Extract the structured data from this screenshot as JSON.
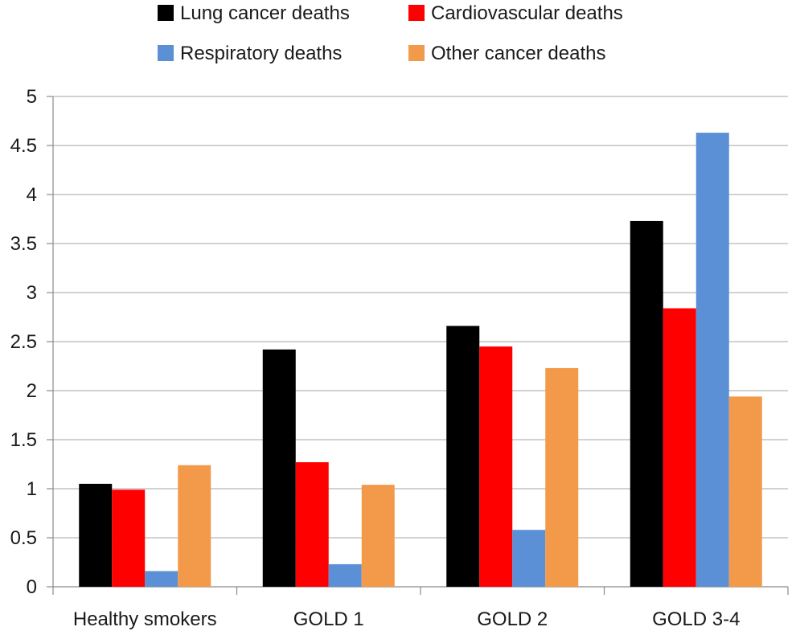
{
  "chart_data": {
    "type": "bar",
    "title": "",
    "xlabel": "",
    "ylabel": "",
    "categories": [
      "Healthy smokers",
      "GOLD 1",
      "GOLD 2",
      "GOLD 3-4"
    ],
    "series": [
      {
        "name": "Lung cancer deaths",
        "color": "#000000",
        "values": [
          1.05,
          2.42,
          2.66,
          3.73
        ]
      },
      {
        "name": "Cardiovascular deaths",
        "color": "#ff0000",
        "values": [
          0.99,
          1.27,
          2.45,
          2.84
        ]
      },
      {
        "name": "Respiratory deaths",
        "color": "#5b8fd6",
        "values": [
          0.16,
          0.23,
          0.58,
          4.63
        ]
      },
      {
        "name": "Other cancer deaths",
        "color": "#f39a4a",
        "values": [
          1.24,
          1.04,
          2.23,
          1.94
        ]
      }
    ],
    "ylim": [
      0,
      5
    ],
    "yticks": [
      "0",
      "0.5",
      "1",
      "1.5",
      "2",
      "2.5",
      "3",
      "3.5",
      "4",
      "4.5",
      "5"
    ],
    "grid": "horizontal",
    "legend_position": "top"
  }
}
